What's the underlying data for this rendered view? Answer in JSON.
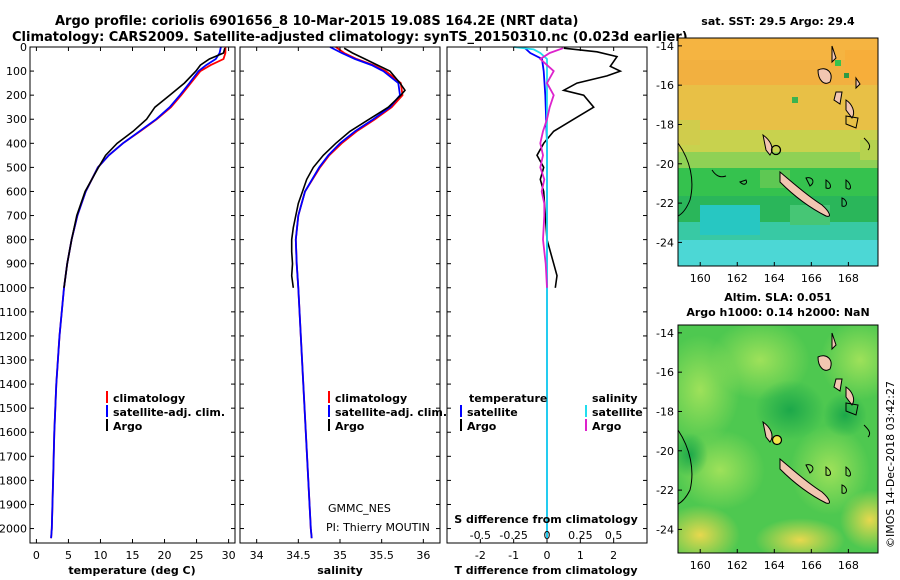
{
  "header": {
    "title_line1": "Argo profile: coriolis 6901656_8 10-Mar-2015 19.08S 164.2E (NRT data)",
    "title_line2": "Climatology: CARS2009. Satellite-adjusted climatology: synTS_20150310.nc (0.023d earlier)"
  },
  "colors": {
    "climatology": "#ff0000",
    "satellite": "#0000ff",
    "argo": "#000000",
    "sat_salinity": "#22ddee",
    "argo_salinity": "#dd22cc"
  },
  "depth_axis": {
    "ticks": [
      "0",
      "100",
      "200",
      "300",
      "400",
      "500",
      "600",
      "700",
      "800",
      "900",
      "1000",
      "1100",
      "1200",
      "1300",
      "1400",
      "1500",
      "1600",
      "1700",
      "1800",
      "1900",
      "2000"
    ]
  },
  "chart_data": [
    {
      "type": "line",
      "name": "temperature-profile",
      "xlabel": "temperature (deg C)",
      "xlim": [
        -1,
        31
      ],
      "ylim": [
        0,
        2060
      ],
      "xticks": [
        "0",
        "5",
        "10",
        "15",
        "20",
        "25",
        "30"
      ],
      "legend": {
        "placement": "lower-center",
        "items": [
          "climatology",
          "satellite-adj. clim.",
          "Argo"
        ]
      },
      "series": [
        {
          "name": "climatology",
          "color": "#ff0000",
          "y": [
            0,
            25,
            50,
            75,
            100,
            150,
            200,
            250,
            300,
            350,
            400,
            450,
            500,
            600,
            700,
            800,
            900,
            1000,
            1200,
            1400,
            1600,
            1800,
            2000,
            2040
          ],
          "x": [
            29.5,
            29.5,
            29.2,
            27.2,
            25.6,
            24.1,
            22.6,
            21,
            18.8,
            16.2,
            13.5,
            11.3,
            9.6,
            7.7,
            6.4,
            5.5,
            4.8,
            4.3,
            3.6,
            3.1,
            2.8,
            2.6,
            2.4,
            2.3
          ]
        },
        {
          "name": "satellite-adj. clim.",
          "color": "#0000ff",
          "y": [
            0,
            25,
            50,
            75,
            100,
            150,
            200,
            250,
            300,
            350,
            400,
            450,
            500,
            600,
            700,
            800,
            900,
            1000,
            1200,
            1400,
            1600,
            1800,
            2000,
            2040
          ],
          "x": [
            28.8,
            28.6,
            28,
            26.5,
            25.3,
            23.9,
            22.4,
            20.8,
            18.7,
            16.1,
            13.5,
            11.3,
            9.6,
            7.7,
            6.4,
            5.5,
            4.8,
            4.3,
            3.6,
            3.1,
            2.8,
            2.6,
            2.4,
            2.3
          ]
        },
        {
          "name": "Argo",
          "color": "#000000",
          "y": [
            5,
            25,
            50,
            75,
            100,
            150,
            200,
            250,
            300,
            350,
            400,
            450,
            500,
            600,
            700,
            800,
            900,
            1000
          ],
          "x": [
            29.4,
            29.2,
            27,
            25.6,
            24.9,
            23.1,
            20.8,
            18.5,
            17.2,
            15.1,
            12.6,
            10.8,
            9.7,
            7.6,
            6.3,
            5.5,
            4.8,
            4.3
          ]
        }
      ]
    },
    {
      "type": "line",
      "name": "salinity-profile",
      "xlabel": "salinity",
      "xlim": [
        33.8,
        36.2
      ],
      "ylim": [
        0,
        2060
      ],
      "xticks": [
        "34",
        "34.5",
        "35",
        "35.5",
        "36"
      ],
      "legend": {
        "placement": "lower-center",
        "items": [
          "climatology",
          "satellite-adj. clim.",
          "Argo"
        ]
      },
      "annotations": [
        "GMMC_NES",
        "PI: Thierry MOUTIN"
      ],
      "series": [
        {
          "name": "climatology",
          "color": "#ff0000",
          "y": [
            0,
            25,
            50,
            75,
            100,
            150,
            200,
            250,
            300,
            350,
            400,
            450,
            500,
            600,
            700,
            800,
            900,
            1000,
            1200,
            1400,
            1600,
            1800,
            2000,
            2040
          ],
          "x": [
            34.95,
            35.05,
            35.2,
            35.4,
            35.55,
            35.73,
            35.75,
            35.62,
            35.42,
            35.2,
            35.02,
            34.87,
            34.76,
            34.58,
            34.5,
            34.47,
            34.48,
            34.5,
            34.53,
            34.56,
            34.59,
            34.62,
            34.65,
            34.66
          ]
        },
        {
          "name": "satellite-adj. clim.",
          "color": "#0000ff",
          "y": [
            0,
            25,
            50,
            75,
            100,
            150,
            200,
            250,
            300,
            350,
            400,
            450,
            500,
            600,
            700,
            800,
            900,
            1000,
            1200,
            1400,
            1600,
            1800,
            2000,
            2040
          ],
          "x": [
            34.88,
            35.02,
            35.18,
            35.38,
            35.52,
            35.7,
            35.72,
            35.6,
            35.4,
            35.18,
            35,
            34.86,
            34.75,
            34.58,
            34.5,
            34.47,
            34.48,
            34.5,
            34.53,
            34.56,
            34.59,
            34.62,
            34.65,
            34.66
          ]
        },
        {
          "name": "Argo",
          "color": "#000000",
          "y": [
            5,
            25,
            50,
            75,
            100,
            150,
            180,
            200,
            250,
            300,
            350,
            400,
            450,
            500,
            550,
            600,
            650,
            700,
            750,
            800,
            850,
            900,
            950,
            1000
          ],
          "x": [
            35.05,
            35.15,
            35.3,
            35.45,
            35.6,
            35.72,
            35.78,
            35.73,
            35.58,
            35.35,
            35.12,
            34.95,
            34.8,
            34.68,
            34.6,
            34.55,
            34.5,
            34.47,
            34.44,
            34.42,
            34.42,
            34.43,
            34.42,
            34.44
          ]
        }
      ]
    },
    {
      "type": "line",
      "name": "difference-profile",
      "xlabel": "T difference from climatology",
      "xlabel_top": "S difference from climatology",
      "xlim": [
        -3,
        3
      ],
      "s_xlim": [
        -0.75,
        0.75
      ],
      "ylim": [
        0,
        2060
      ],
      "xticks": [
        "-2",
        "-1",
        "0",
        "1",
        "2"
      ],
      "s_xticks": [
        "-0.5",
        "-0.25",
        "0",
        "0.25",
        "0.5"
      ],
      "legend": {
        "left_title": "temperature",
        "right_title": "salinity",
        "left_items": [
          "satellite",
          "Argo"
        ],
        "right_items": [
          "satellite",
          "Argo"
        ]
      },
      "series": [
        {
          "name": "T satellite",
          "color": "#0000ff",
          "y": [
            0,
            25,
            50,
            100,
            200,
            400,
            600,
            800,
            1000,
            1200,
            2040
          ],
          "x": [
            -0.7,
            -0.5,
            -0.15,
            -0.1,
            -0.05,
            0,
            0,
            0,
            0,
            0,
            0
          ]
        },
        {
          "name": "T Argo",
          "color": "#000000",
          "y": [
            5,
            20,
            40,
            60,
            80,
            100,
            120,
            150,
            180,
            200,
            250,
            300,
            350,
            400,
            450,
            500,
            550,
            600,
            700,
            800,
            900,
            950,
            1000
          ],
          "x": [
            0.5,
            1.5,
            2.1,
            2.0,
            1.9,
            2.2,
            1.8,
            0.9,
            0.5,
            1.1,
            1.4,
            0.8,
            0.2,
            -0.1,
            -0.3,
            -0.1,
            -0.2,
            -0.1,
            -0.05,
            0,
            0.2,
            0.3,
            0.25
          ]
        },
        {
          "name": "S satellite",
          "color": "#22ddee",
          "y": [
            0,
            10,
            25,
            50,
            100,
            200,
            400,
            600,
            800,
            1000,
            1200,
            2040
          ],
          "x": [
            -0.25,
            -0.1,
            -0.05,
            0,
            0,
            0,
            0,
            0,
            0,
            0,
            0,
            0
          ]
        },
        {
          "name": "S Argo",
          "color": "#dd22cc",
          "y": [
            5,
            25,
            50,
            75,
            100,
            150,
            200,
            250,
            300,
            350,
            400,
            450,
            500,
            550,
            600,
            650,
            700,
            800,
            900,
            1000
          ],
          "x": [
            0.12,
            0.02,
            -0.05,
            0,
            0.05,
            0,
            0.05,
            0.02,
            0,
            -0.03,
            -0.05,
            -0.03,
            -0.05,
            -0.02,
            -0.04,
            -0.02,
            -0.02,
            -0.03,
            -0.01,
            0
          ]
        }
      ]
    }
  ],
  "maps": {
    "top_title": "sat. SST: 29.5 Argo: 29.4",
    "bottom_title_line1": "Altim. SLA: 0.051",
    "bottom_title_line2": "Argo h1000: 0.14 h2000: NaN",
    "lon_ticks": [
      "160",
      "162",
      "164",
      "166",
      "168"
    ],
    "lat_ticks": [
      "-14",
      "-16",
      "-18",
      "-20",
      "-22",
      "-24"
    ],
    "argo_position": {
      "lon": 164.2,
      "lat": -19.08
    }
  },
  "credit": "©IMOS 14-Dec-2018 03:42:27"
}
